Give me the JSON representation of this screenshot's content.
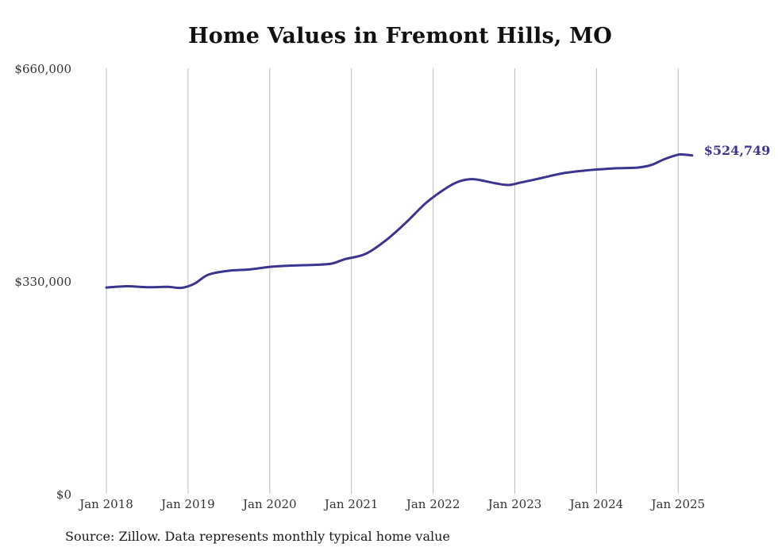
{
  "chart_data": {
    "type": "line",
    "title": "Home Values in Fremont Hills, MO",
    "xlabel": "",
    "ylabel": "",
    "ylim": [
      0,
      660000
    ],
    "y_ticks": [
      {
        "value": 0,
        "label": "$0"
      },
      {
        "value": 330000,
        "label": "$330,000"
      },
      {
        "value": 660000,
        "label": "$660,000"
      }
    ],
    "x_ticks": [
      {
        "value": 2018.0,
        "label": "Jan 2018"
      },
      {
        "value": 2019.0,
        "label": "Jan 2019"
      },
      {
        "value": 2020.0,
        "label": "Jan 2020"
      },
      {
        "value": 2021.0,
        "label": "Jan 2021"
      },
      {
        "value": 2022.0,
        "label": "Jan 2022"
      },
      {
        "value": 2023.0,
        "label": "Jan 2023"
      },
      {
        "value": 2024.0,
        "label": "Jan 2024"
      },
      {
        "value": 2025.0,
        "label": "Jan 2025"
      }
    ],
    "xlim": [
      2018.0,
      2025.17
    ],
    "grid": {
      "vertical": true,
      "horizontal": false
    },
    "series": [
      {
        "color": "#3b3590",
        "end_label": "$524,749",
        "points": [
          {
            "x": 2018.0,
            "y": 320000
          },
          {
            "x": 2018.25,
            "y": 322000
          },
          {
            "x": 2018.5,
            "y": 320500
          },
          {
            "x": 2018.75,
            "y": 321000
          },
          {
            "x": 2018.92,
            "y": 319500
          },
          {
            "x": 2019.08,
            "y": 326000
          },
          {
            "x": 2019.25,
            "y": 340000
          },
          {
            "x": 2019.5,
            "y": 346000
          },
          {
            "x": 2019.75,
            "y": 348000
          },
          {
            "x": 2020.0,
            "y": 352000
          },
          {
            "x": 2020.25,
            "y": 354000
          },
          {
            "x": 2020.5,
            "y": 355000
          },
          {
            "x": 2020.75,
            "y": 357000
          },
          {
            "x": 2020.92,
            "y": 364000
          },
          {
            "x": 2021.17,
            "y": 372000
          },
          {
            "x": 2021.42,
            "y": 393000
          },
          {
            "x": 2021.67,
            "y": 421000
          },
          {
            "x": 2021.92,
            "y": 452000
          },
          {
            "x": 2022.17,
            "y": 475000
          },
          {
            "x": 2022.33,
            "y": 485000
          },
          {
            "x": 2022.5,
            "y": 488000
          },
          {
            "x": 2022.75,
            "y": 482000
          },
          {
            "x": 2022.92,
            "y": 479000
          },
          {
            "x": 2023.08,
            "y": 483000
          },
          {
            "x": 2023.33,
            "y": 490000
          },
          {
            "x": 2023.58,
            "y": 497000
          },
          {
            "x": 2023.83,
            "y": 501000
          },
          {
            "x": 2024.0,
            "y": 503000
          },
          {
            "x": 2024.25,
            "y": 505000
          },
          {
            "x": 2024.5,
            "y": 506000
          },
          {
            "x": 2024.67,
            "y": 510000
          },
          {
            "x": 2024.83,
            "y": 519000
          },
          {
            "x": 2025.0,
            "y": 526000
          },
          {
            "x": 2025.08,
            "y": 526000
          },
          {
            "x": 2025.17,
            "y": 524749
          }
        ]
      }
    ]
  },
  "source_note": "Source: Zillow. Data represents monthly typical home value"
}
